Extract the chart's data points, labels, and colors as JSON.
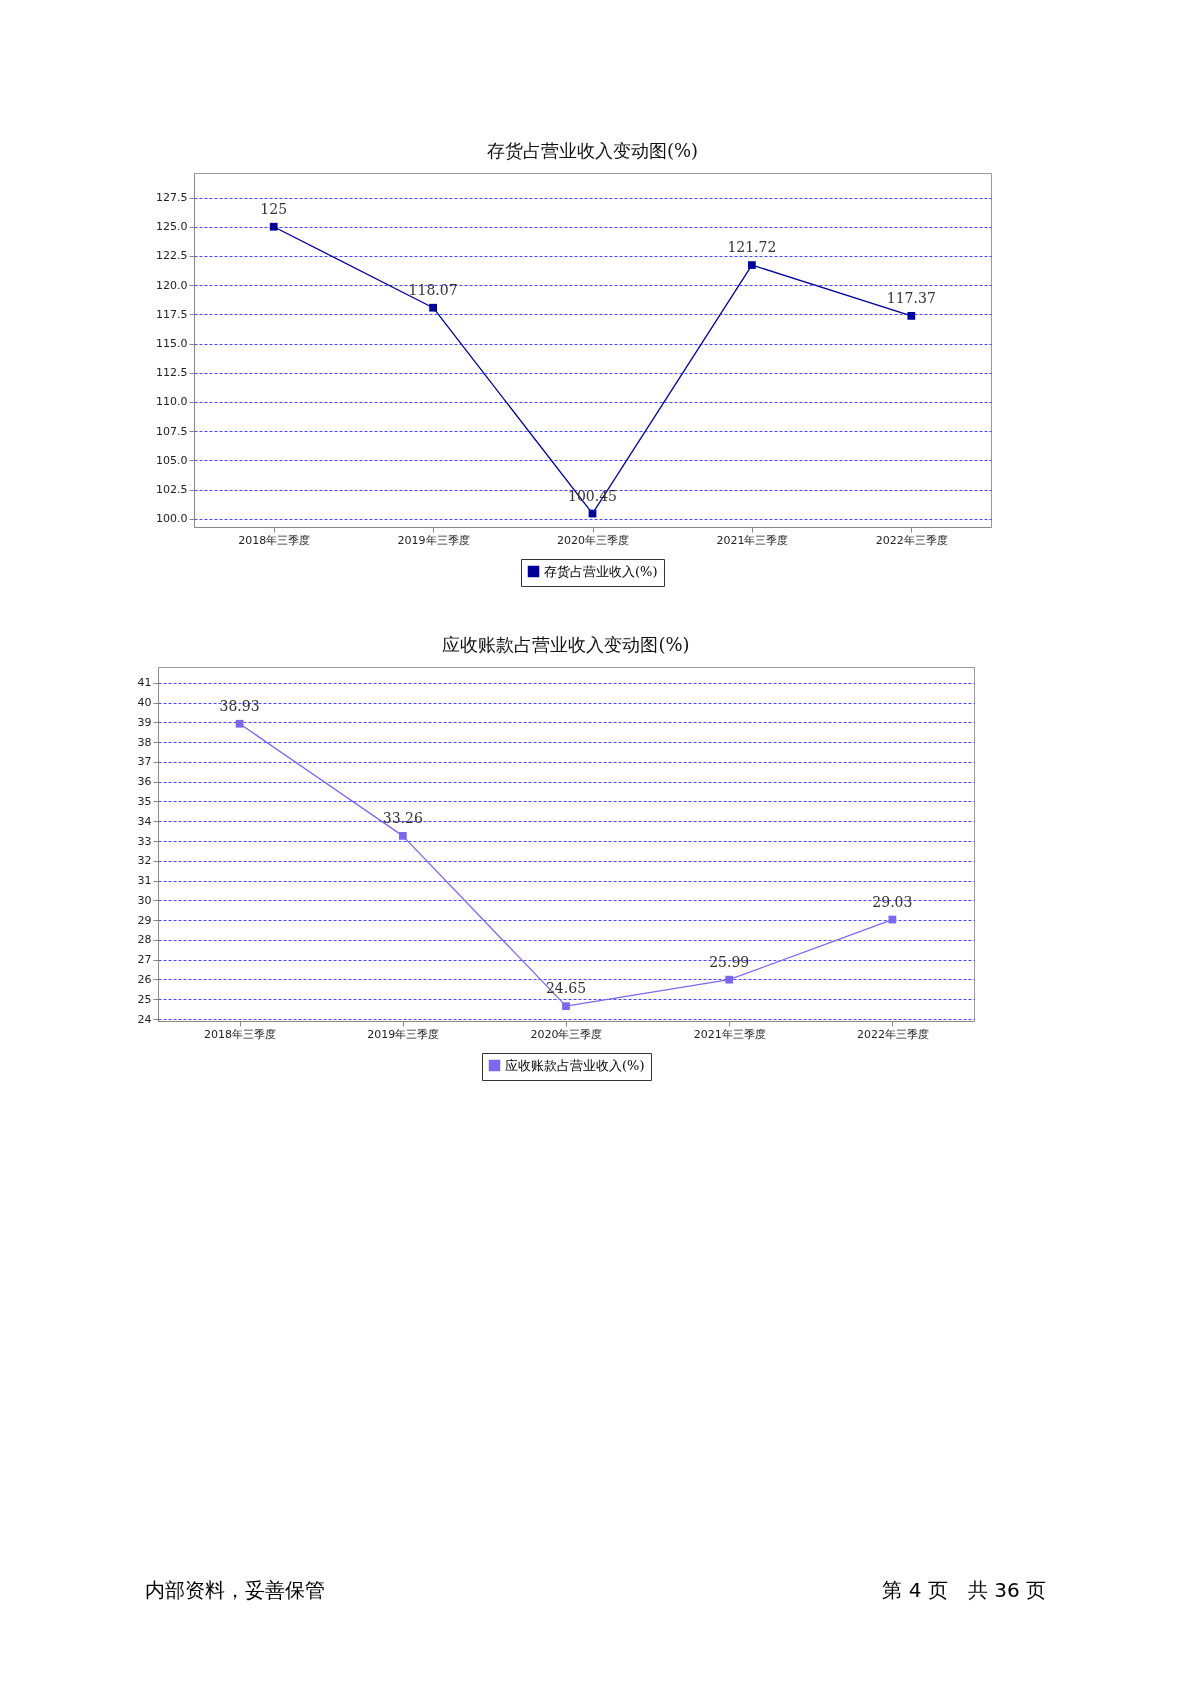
{
  "chart_data": [
    {
      "type": "line",
      "title": "存货占营业收入变动图(%)",
      "categories": [
        "2018年三季度",
        "2019年三季度",
        "2020年三季度",
        "2021年三季度",
        "2022年三季度"
      ],
      "series": [
        {
          "name": "存货占营业收入(%)",
          "color": "#000099",
          "values": [
            125,
            118.07,
            100.45,
            121.72,
            117.37
          ]
        }
      ],
      "ylim": [
        99.3,
        129.6
      ],
      "yticks": [
        {
          "value": 100,
          "label": "100.0"
        },
        {
          "value": 102.5,
          "label": "102.5"
        },
        {
          "value": 105,
          "label": "105.0"
        },
        {
          "value": 107.5,
          "label": "107.5"
        },
        {
          "value": 110,
          "label": "110.0"
        },
        {
          "value": 112.5,
          "label": "112.5"
        },
        {
          "value": 115,
          "label": "115.0"
        },
        {
          "value": 117.5,
          "label": "117.5"
        },
        {
          "value": 120,
          "label": "120.0"
        },
        {
          "value": 122.5,
          "label": "122.5"
        },
        {
          "value": 125,
          "label": "125.0"
        },
        {
          "value": 127.5,
          "label": "127.5"
        }
      ],
      "grid": "y",
      "legend": "bottom",
      "marker": "square",
      "line_style": "solid",
      "data_labels": true
    },
    {
      "type": "line",
      "title": "应收账款占营业收入变动图(%)",
      "categories": [
        "2018年三季度",
        "2019年三季度",
        "2020年三季度",
        "2021年三季度",
        "2022年三季度"
      ],
      "series": [
        {
          "name": "应收账款占营业收入(%)",
          "color": "#7b68ee",
          "values": [
            38.93,
            33.26,
            24.65,
            25.99,
            29.03
          ]
        }
      ],
      "ylim": [
        23.9,
        41.8
      ],
      "yticks": [
        24,
        25,
        26,
        27,
        28,
        29,
        30,
        31,
        32,
        33,
        34,
        35,
        36,
        37,
        38,
        39,
        40,
        41
      ],
      "grid": "y",
      "legend": "bottom",
      "marker": "square",
      "line_style": "solid",
      "data_labels": true,
      "annotations": [
        "内部资料，妥善保管",
        "第 4 页　共 36 页"
      ]
    }
  ]
}
